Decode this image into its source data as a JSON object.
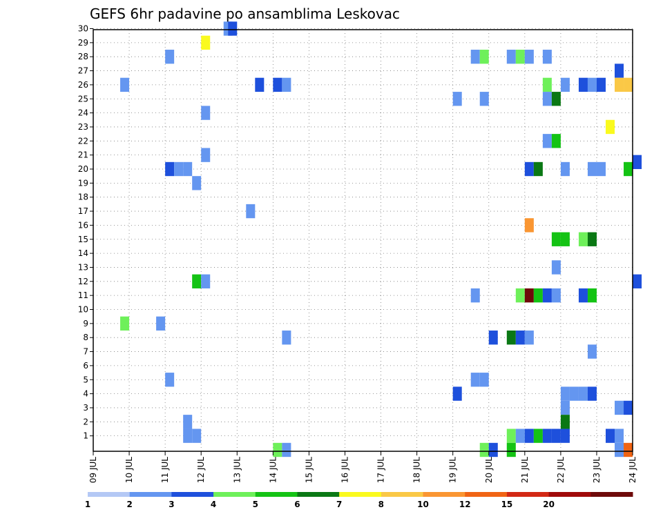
{
  "chart_data": {
    "type": "heatmap",
    "title": "GEFS 6hr padavine po ansamblima Leskovac",
    "xlabel": "",
    "ylabel": "",
    "x_tick_labels": [
      "09 JUL",
      "10 JUL",
      "11 JUL",
      "12 JUL",
      "13 JUL",
      "14 JUL",
      "15 JUL",
      "16 JUL",
      "17 JUL",
      "18 JUL",
      "19 JUL",
      "20 JUL",
      "21 JUL",
      "22 JUL",
      "23 JUL",
      "24 JUL"
    ],
    "y_tick_labels": [
      "1",
      "2",
      "3",
      "4",
      "5",
      "6",
      "7",
      "8",
      "9",
      "10",
      "11",
      "12",
      "13",
      "14",
      "15",
      "16",
      "17",
      "18",
      "19",
      "20",
      "21",
      "22",
      "23",
      "24",
      "25",
      "26",
      "27",
      "28",
      "29",
      "30"
    ],
    "grid": true,
    "x_unit": "6-hour step since 09 JUL 00Z",
    "y_unit": "ensemble member",
    "legend": {
      "placement": "bottom",
      "labels": [
        "1",
        "2",
        "3",
        "4",
        "5",
        "6",
        "7",
        "8",
        "10",
        "12",
        "15",
        "20"
      ],
      "colors": [
        "#b4c8f5",
        "#6496f0",
        "#1e50dc",
        "#6ef05a",
        "#14c314",
        "#0a7814",
        "#fafa1e",
        "#fac846",
        "#fa9632",
        "#f06414",
        "#d22814",
        "#a00a0a",
        "#6e0a0a"
      ]
    },
    "cells": [
      {
        "x": 14.5,
        "y": 30,
        "c": 1
      },
      {
        "x": 15,
        "y": 30,
        "c": 2
      },
      {
        "x": 12,
        "y": 29,
        "c": 6
      },
      {
        "x": 8,
        "y": 28,
        "c": 1
      },
      {
        "x": 42,
        "y": 28,
        "c": 1
      },
      {
        "x": 43,
        "y": 28,
        "c": 3
      },
      {
        "x": 46,
        "y": 28,
        "c": 1
      },
      {
        "x": 47,
        "y": 28,
        "c": 3
      },
      {
        "x": 48,
        "y": 28,
        "c": 1
      },
      {
        "x": 50,
        "y": 28,
        "c": 1
      },
      {
        "x": 58,
        "y": 27,
        "c": 2
      },
      {
        "x": 3,
        "y": 26,
        "c": 1
      },
      {
        "x": 18,
        "y": 26,
        "c": 2
      },
      {
        "x": 20,
        "y": 26,
        "c": 2
      },
      {
        "x": 21,
        "y": 26,
        "c": 1
      },
      {
        "x": 50,
        "y": 26,
        "c": 3
      },
      {
        "x": 52,
        "y": 26,
        "c": 1
      },
      {
        "x": 54,
        "y": 26,
        "c": 2
      },
      {
        "x": 55,
        "y": 26,
        "c": 1
      },
      {
        "x": 56,
        "y": 26,
        "c": 2
      },
      {
        "x": 58,
        "y": 26,
        "c": 7
      },
      {
        "x": 59,
        "y": 26,
        "c": 7
      },
      {
        "x": 40,
        "y": 25,
        "c": 1
      },
      {
        "x": 43,
        "y": 25,
        "c": 1
      },
      {
        "x": 50,
        "y": 25,
        "c": 1
      },
      {
        "x": 51,
        "y": 25,
        "c": 5
      },
      {
        "x": 12,
        "y": 24,
        "c": 1
      },
      {
        "x": 57,
        "y": 23,
        "c": 6
      },
      {
        "x": 50,
        "y": 22,
        "c": 1
      },
      {
        "x": 51,
        "y": 22,
        "c": 4
      },
      {
        "x": 12,
        "y": 21,
        "c": 1
      },
      {
        "x": 8,
        "y": 20,
        "c": 2
      },
      {
        "x": 9,
        "y": 20,
        "c": 1
      },
      {
        "x": 10,
        "y": 20,
        "c": 1
      },
      {
        "x": 48,
        "y": 20,
        "c": 2
      },
      {
        "x": 49,
        "y": 20,
        "c": 5
      },
      {
        "x": 52,
        "y": 20,
        "c": 1
      },
      {
        "x": 55,
        "y": 20,
        "c": 1
      },
      {
        "x": 56,
        "y": 20,
        "c": 1
      },
      {
        "x": 59,
        "y": 20,
        "c": 4
      },
      {
        "x": 60,
        "y": 20.5,
        "c": 2
      },
      {
        "x": 11,
        "y": 19,
        "c": 1
      },
      {
        "x": 17,
        "y": 17,
        "c": 1
      },
      {
        "x": 48,
        "y": 16,
        "c": 8
      },
      {
        "x": 51,
        "y": 15,
        "c": 4
      },
      {
        "x": 52,
        "y": 15,
        "c": 4
      },
      {
        "x": 54,
        "y": 15,
        "c": 3
      },
      {
        "x": 55,
        "y": 15,
        "c": 5
      },
      {
        "x": 51,
        "y": 13,
        "c": 1
      },
      {
        "x": 11,
        "y": 12,
        "c": 4
      },
      {
        "x": 12,
        "y": 12,
        "c": 1
      },
      {
        "x": 60,
        "y": 12,
        "c": 2
      },
      {
        "x": 42,
        "y": 11,
        "c": 1
      },
      {
        "x": 47,
        "y": 11,
        "c": 3
      },
      {
        "x": 48,
        "y": 11,
        "c": 12
      },
      {
        "x": 49,
        "y": 11,
        "c": 4
      },
      {
        "x": 50,
        "y": 11,
        "c": 2
      },
      {
        "x": 51,
        "y": 11,
        "c": 1
      },
      {
        "x": 54,
        "y": 11,
        "c": 2
      },
      {
        "x": 55,
        "y": 11,
        "c": 4
      },
      {
        "x": 3,
        "y": 9,
        "c": 3
      },
      {
        "x": 7,
        "y": 9,
        "c": 1
      },
      {
        "x": 21,
        "y": 8,
        "c": 1
      },
      {
        "x": 44,
        "y": 8,
        "c": 2
      },
      {
        "x": 46,
        "y": 8,
        "c": 5
      },
      {
        "x": 47,
        "y": 8,
        "c": 2
      },
      {
        "x": 48,
        "y": 8,
        "c": 1
      },
      {
        "x": 55,
        "y": 7,
        "c": 1
      },
      {
        "x": 8,
        "y": 5,
        "c": 1
      },
      {
        "x": 42,
        "y": 5,
        "c": 1
      },
      {
        "x": 43,
        "y": 5,
        "c": 1
      },
      {
        "x": 40,
        "y": 4,
        "c": 2
      },
      {
        "x": 52,
        "y": 4,
        "c": 1
      },
      {
        "x": 53,
        "y": 4,
        "c": 1
      },
      {
        "x": 54,
        "y": 4,
        "c": 1
      },
      {
        "x": 55,
        "y": 4,
        "c": 2
      },
      {
        "x": 52,
        "y": 3,
        "c": 1
      },
      {
        "x": 58,
        "y": 3,
        "c": 1
      },
      {
        "x": 59,
        "y": 3,
        "c": 2
      },
      {
        "x": 10,
        "y": 2,
        "c": 1
      },
      {
        "x": 52,
        "y": 2,
        "c": 5
      },
      {
        "x": 10,
        "y": 1,
        "c": 1
      },
      {
        "x": 11,
        "y": 1,
        "c": 1
      },
      {
        "x": 46,
        "y": 1,
        "c": 3
      },
      {
        "x": 47,
        "y": 1,
        "c": 1
      },
      {
        "x": 48,
        "y": 1,
        "c": 2
      },
      {
        "x": 49,
        "y": 1,
        "c": 4
      },
      {
        "x": 50,
        "y": 1,
        "c": 2
      },
      {
        "x": 51,
        "y": 1,
        "c": 2
      },
      {
        "x": 52,
        "y": 1,
        "c": 2
      },
      {
        "x": 57,
        "y": 1,
        "c": 2
      },
      {
        "x": 58,
        "y": 1,
        "c": 1
      },
      {
        "x": 20,
        "y": 0,
        "c": 3
      },
      {
        "x": 21,
        "y": 0,
        "c": 1
      },
      {
        "x": 43,
        "y": 0,
        "c": 3
      },
      {
        "x": 44,
        "y": 0,
        "c": 2
      },
      {
        "x": 46,
        "y": 0,
        "c": 4
      },
      {
        "x": 58,
        "y": 0,
        "c": 1
      },
      {
        "x": 59,
        "y": 0,
        "c": 9
      }
    ]
  }
}
